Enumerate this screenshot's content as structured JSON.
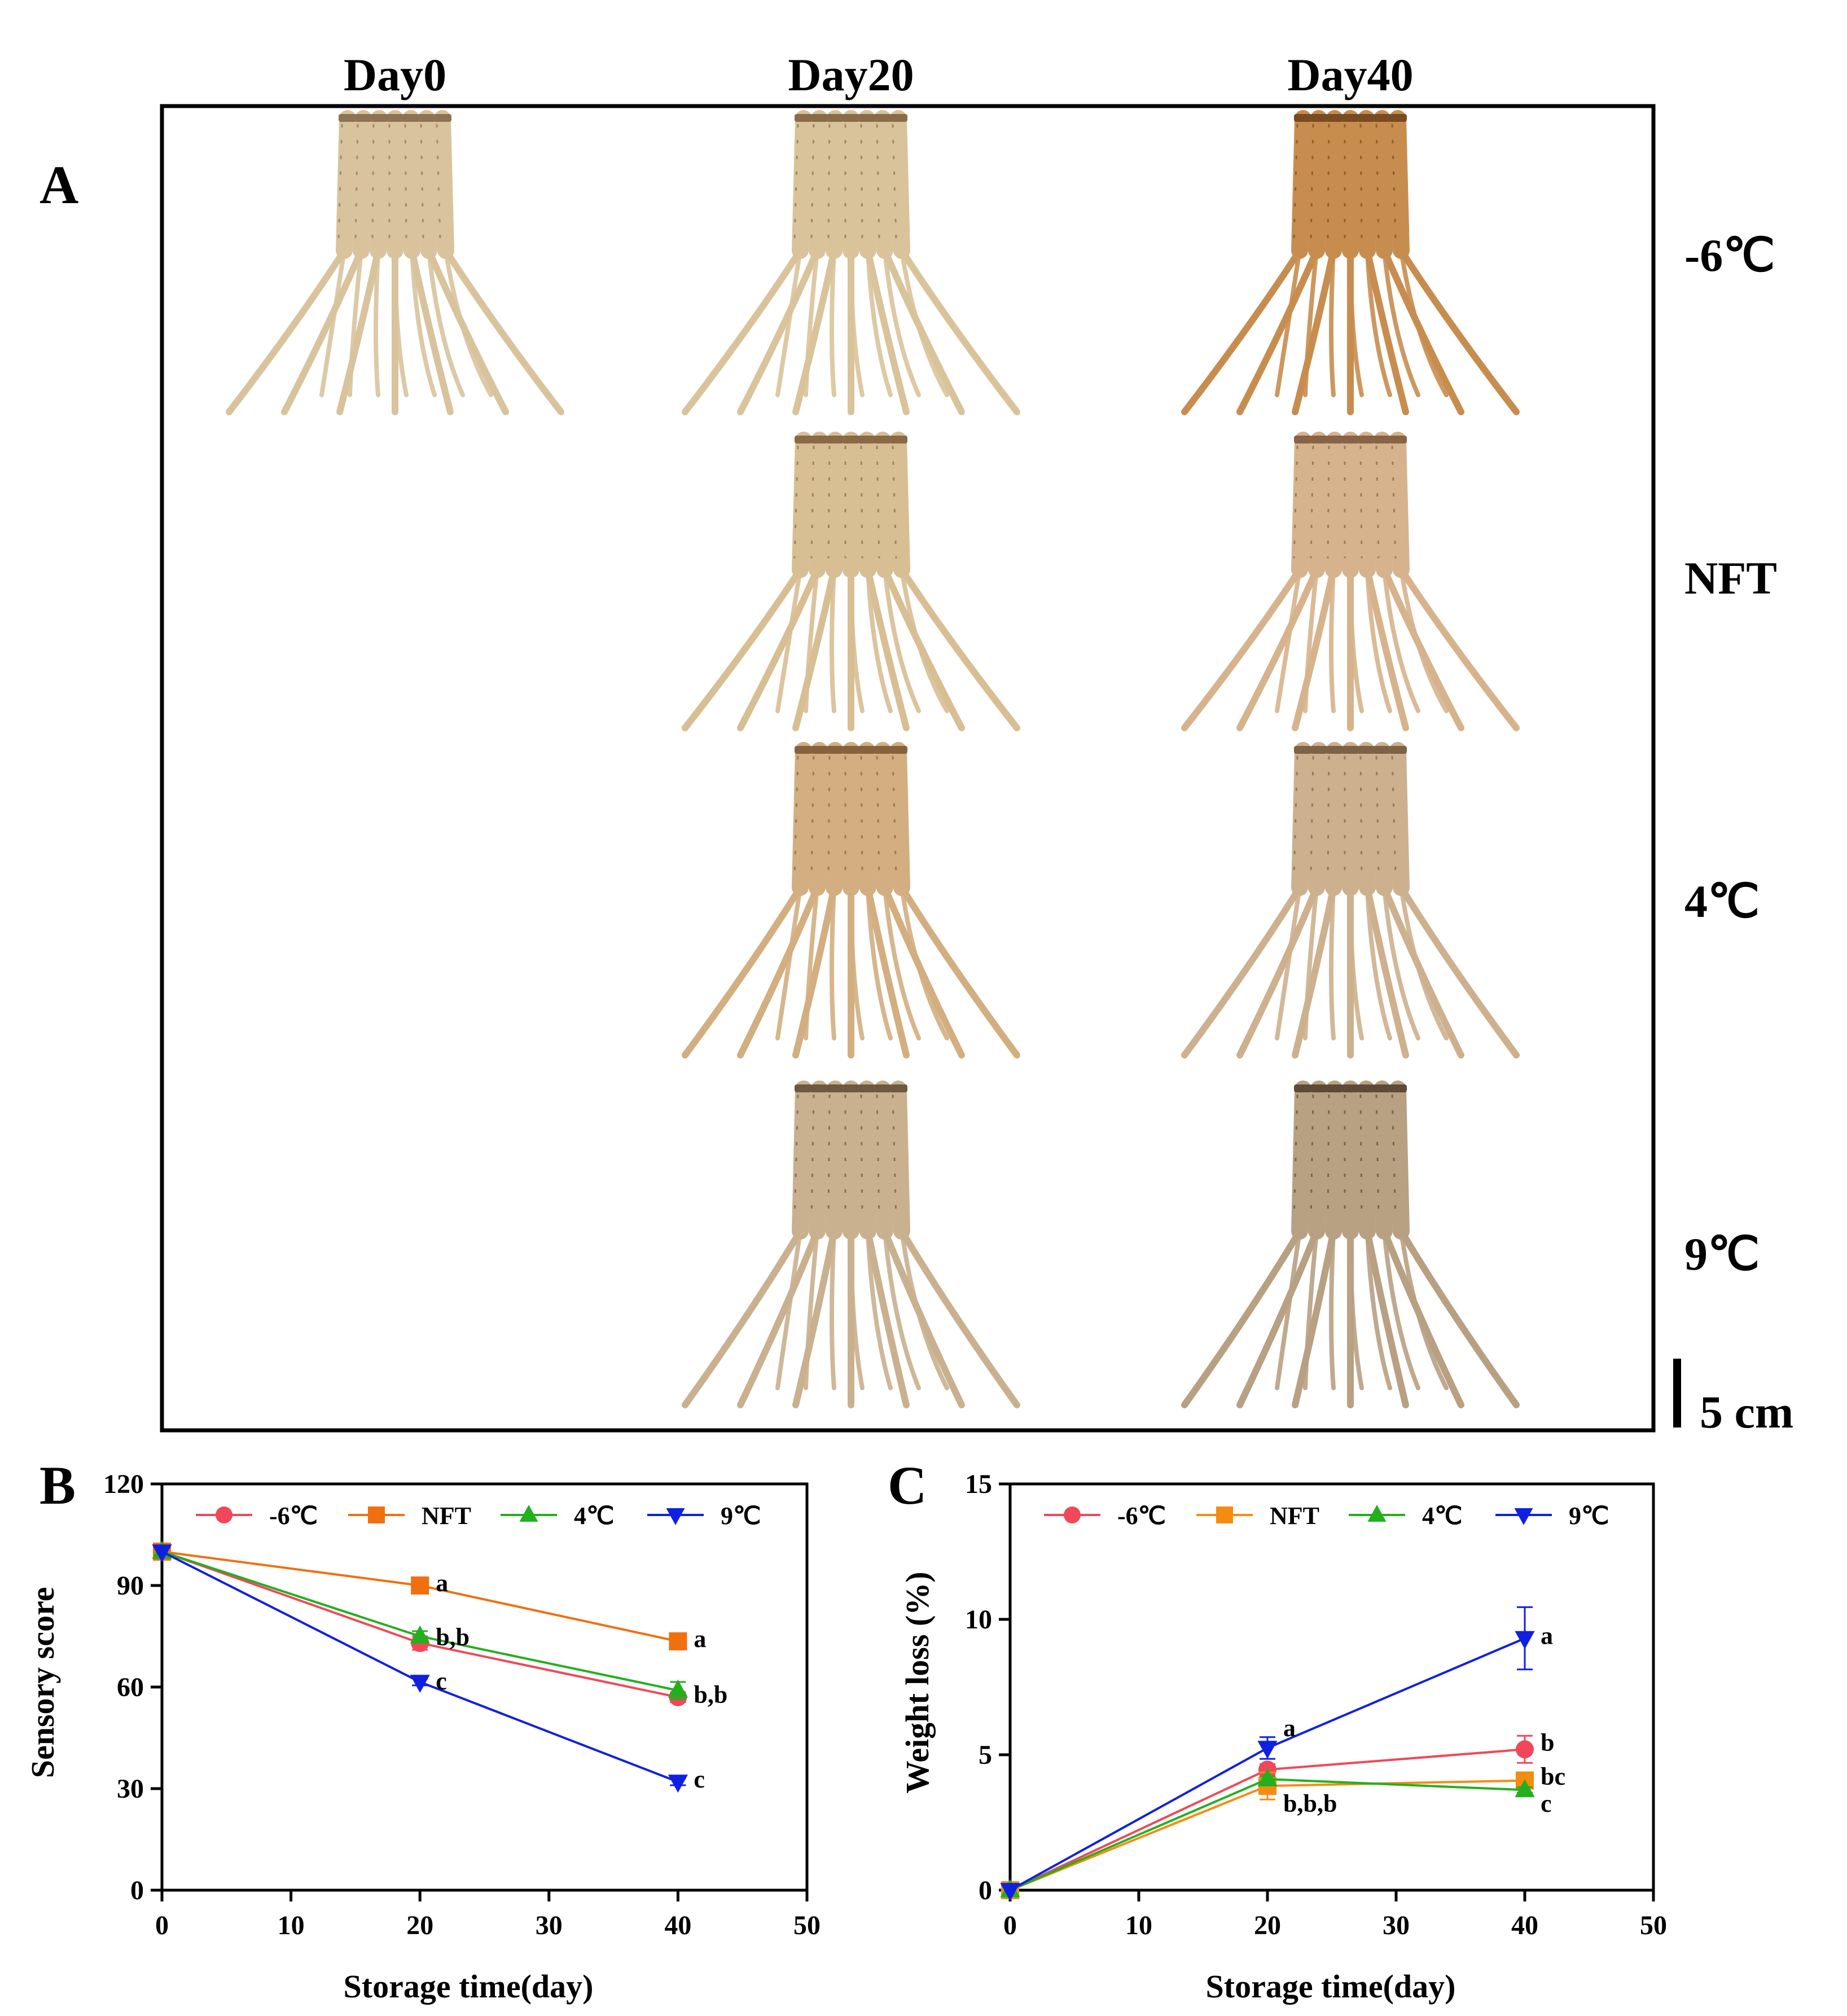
{
  "panel_a": {
    "letter": "A",
    "columns": [
      "Day0",
      "Day20",
      "Day40"
    ],
    "rows": [
      "-6℃",
      "NFT",
      "4℃",
      "9℃"
    ],
    "scale_label": "5 cm",
    "photos": [
      {
        "col": 0,
        "row": 0,
        "tone": "#d8c39d",
        "dark": "#8f7250"
      },
      {
        "col": 1,
        "row": 0,
        "tone": "#d9c39a",
        "dark": "#8a6c48"
      },
      {
        "col": 2,
        "row": 0,
        "tone": "#c78d4f",
        "dark": "#7a4a20"
      },
      {
        "col": 1,
        "row": 1,
        "tone": "#d7be93",
        "dark": "#8a6a44"
      },
      {
        "col": 2,
        "row": 1,
        "tone": "#d6b38c",
        "dark": "#876445"
      },
      {
        "col": 1,
        "row": 2,
        "tone": "#d2ae80",
        "dark": "#86623c"
      },
      {
        "col": 2,
        "row": 2,
        "tone": "#cdb08e",
        "dark": "#7e6246"
      },
      {
        "col": 1,
        "row": 3,
        "tone": "#c9b08f",
        "dark": "#6e5840"
      },
      {
        "col": 2,
        "row": 3,
        "tone": "#b8a083",
        "dark": "#5e4a36"
      }
    ]
  },
  "chart_data": [
    {
      "panel": "B",
      "type": "line",
      "xlabel": "Storage time(day)",
      "ylabel": "Sensory score",
      "xlim": [
        0,
        50
      ],
      "ylim": [
        0,
        120
      ],
      "xticks": [
        0,
        10,
        20,
        30,
        40,
        50
      ],
      "yticks": [
        0,
        30,
        60,
        90,
        120
      ],
      "legend": "top",
      "series": [
        {
          "name": "-6℃",
          "color": "#f0485a",
          "marker": "circle",
          "x": [
            0,
            20,
            40
          ],
          "y": [
            100,
            73,
            57
          ],
          "err": [
            0,
            2,
            1.5
          ]
        },
        {
          "name": "NFT",
          "color": "#f07010",
          "marker": "square",
          "x": [
            0,
            20,
            40
          ],
          "y": [
            100,
            90,
            73.5
          ],
          "err": [
            0,
            1,
            1
          ]
        },
        {
          "name": "4℃",
          "color": "#22b01e",
          "marker": "triangle-up",
          "x": [
            0,
            20,
            40
          ],
          "y": [
            100,
            75,
            59
          ],
          "err": [
            0,
            1.5,
            2.5
          ]
        },
        {
          "name": "9℃",
          "color": "#1020e0",
          "marker": "triangle-down",
          "x": [
            0,
            20,
            40
          ],
          "y": [
            100,
            61.5,
            32
          ],
          "err": [
            0,
            1,
            1
          ]
        }
      ],
      "annotations": [
        {
          "text": "a",
          "x": 20,
          "y": 90
        },
        {
          "text": "b,b",
          "x": 20,
          "y": 74
        },
        {
          "text": "c",
          "x": 20,
          "y": 61
        },
        {
          "text": "a",
          "x": 40,
          "y": 73.5
        },
        {
          "text": "b,b",
          "x": 40,
          "y": 57
        },
        {
          "text": "c",
          "x": 40,
          "y": 32
        }
      ]
    },
    {
      "panel": "C",
      "type": "line",
      "xlabel": "Storage time(day)",
      "ylabel": "Weight loss (%)",
      "xlim": [
        0,
        50
      ],
      "ylim": [
        0,
        15
      ],
      "xticks": [
        0,
        10,
        20,
        30,
        40,
        50
      ],
      "yticks": [
        0,
        5,
        10,
        15
      ],
      "legend": "top",
      "series": [
        {
          "name": "-6℃",
          "color": "#f0485a",
          "marker": "circle",
          "x": [
            0,
            20,
            40
          ],
          "y": [
            0,
            4.45,
            5.2
          ],
          "err": [
            0,
            0.2,
            0.5
          ]
        },
        {
          "name": "NFT",
          "color": "#f58c12",
          "marker": "square",
          "x": [
            0,
            20,
            40
          ],
          "y": [
            0,
            3.85,
            4.05
          ],
          "err": [
            0,
            0.5,
            0.2
          ]
        },
        {
          "name": "4℃",
          "color": "#22b01e",
          "marker": "triangle-up",
          "x": [
            0,
            20,
            40
          ],
          "y": [
            0,
            4.1,
            3.7
          ],
          "err": [
            0,
            0.1,
            0.1
          ]
        },
        {
          "name": "9℃",
          "color": "#1020e0",
          "marker": "triangle-down",
          "x": [
            0,
            20,
            40
          ],
          "y": [
            0,
            5.25,
            9.3
          ],
          "err": [
            0,
            0.4,
            1.15
          ]
        }
      ],
      "annotations": [
        {
          "text": "a",
          "x": 20,
          "y": 5.9
        },
        {
          "text": "b,b,b",
          "x": 20,
          "y": 3.1
        },
        {
          "text": "a",
          "x": 40,
          "y": 9.3
        },
        {
          "text": "b",
          "x": 40,
          "y": 5.35
        },
        {
          "text": "bc",
          "x": 40,
          "y": 4.1
        },
        {
          "text": "c",
          "x": 40,
          "y": 3.1
        }
      ]
    }
  ]
}
